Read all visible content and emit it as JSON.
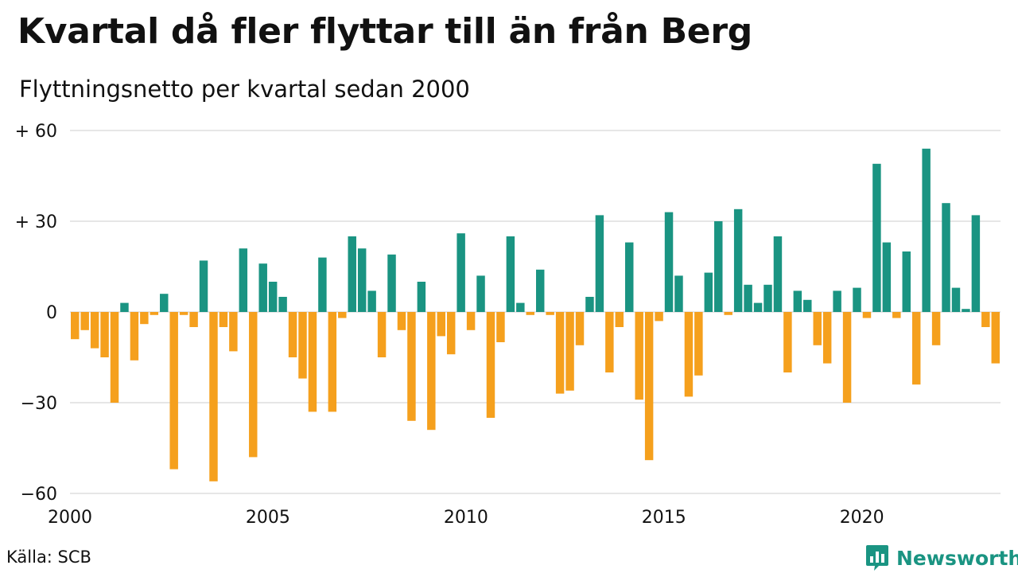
{
  "source": "Källa: SCB",
  "brand": {
    "name": "Newsworthy",
    "logo": "bar-chart-speech-bubble-icon",
    "color": "#1a9482"
  },
  "colors": {
    "positive": "#1a9482",
    "negative": "#f5a01d",
    "grid": "#dddddd"
  },
  "chart_data": {
    "type": "bar",
    "title": "Kvartal då fler flyttar till än från Berg",
    "subtitle": "Flyttningsnetto per kvartal sedan 2000",
    "xlabel": "",
    "ylabel": "",
    "ylim": [
      -60,
      60
    ],
    "yticks": [
      {
        "value": 60,
        "label": "+ 60"
      },
      {
        "value": 30,
        "label": "+ 30"
      },
      {
        "value": 0,
        "label": "0"
      },
      {
        "value": -30,
        "label": "−30"
      },
      {
        "value": -60,
        "label": "−60"
      }
    ],
    "xticks": [
      {
        "value": 2000,
        "label": "2000"
      },
      {
        "value": 2005,
        "label": "2005"
      },
      {
        "value": 2010,
        "label": "2010"
      },
      {
        "value": 2015,
        "label": "2015"
      },
      {
        "value": 2020,
        "label": "2020"
      }
    ],
    "grid": true,
    "legend": "none",
    "start_quarter": "2000 Q1",
    "values": [
      -9,
      -6,
      -12,
      -15,
      -30,
      3,
      -16,
      -4,
      -1,
      6,
      -52,
      -1,
      -5,
      17,
      -56,
      -5,
      -13,
      21,
      -48,
      16,
      10,
      5,
      -15,
      -22,
      -33,
      18,
      -33,
      -2,
      25,
      21,
      7,
      -15,
      19,
      -6,
      -36,
      10,
      -39,
      -8,
      -14,
      26,
      -6,
      12,
      -35,
      -10,
      25,
      3,
      -1,
      14,
      -1,
      -27,
      -26,
      -11,
      5,
      32,
      -20,
      -5,
      23,
      -29,
      -49,
      -3,
      33,
      12,
      -28,
      -21,
      13,
      30,
      -1,
      34,
      9,
      3,
      9,
      25,
      -20,
      7,
      4,
      -11,
      -17,
      7,
      -30,
      8,
      -2,
      49,
      23,
      -2,
      20,
      -24,
      54,
      -11,
      36,
      8,
      1,
      32,
      -5,
      -17
    ]
  }
}
